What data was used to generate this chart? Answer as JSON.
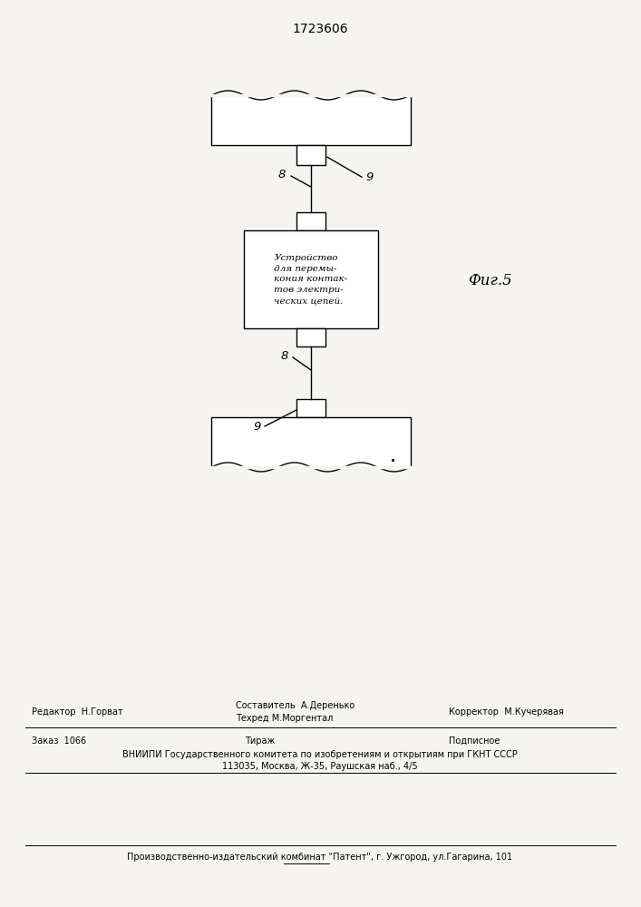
{
  "title": "1723606",
  "fig_label": "Фиг.5",
  "background_color": "#f5f4f0",
  "title_fontsize": 10,
  "box_text": "Устройство\nдля перемы-\nкания контак-\nтов электри-\nческих цепей.",
  "label_8": "8",
  "label_9": "9",
  "footer_editor": "Редактор  Н.Горват",
  "footer_compiler": "Составитель  А.Деренько",
  "footer_techred": "Техред М.Моргентал",
  "footer_corrector": "Корректор  М.Кучерявая",
  "footer_order": "Заказ  1066",
  "footer_tirazh": "Тираж",
  "footer_podpisnoe": "Подписное",
  "footer_vniiipi": "ВНИИПИ Государственного комитета по изобретениям и открытиям при ГКНТ СССР",
  "footer_address": "113035, Москва, Ж-35, Раушская наб., 4/5",
  "footer_patent": "Производственно-издательский комбинат \"Патент\", г. Ужгород, ул.Гагарина, 101"
}
